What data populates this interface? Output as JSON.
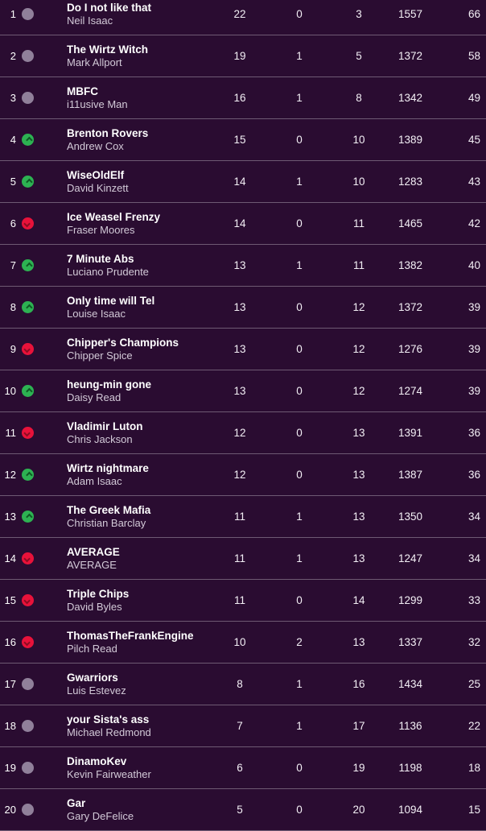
{
  "colors": {
    "background": "#2a0c31",
    "movement_up": "#2db252",
    "movement_down": "#e8123a",
    "movement_same": "#90809a",
    "separator": "rgba(255,255,255,0.32)"
  },
  "standings": [
    {
      "rank": "1",
      "movement": "same",
      "team": "Do I not like that",
      "manager": "Neil Isaac",
      "won": "22",
      "drawn": "0",
      "lost": "3",
      "points_for": "1557",
      "total": "66"
    },
    {
      "rank": "2",
      "movement": "same",
      "team": "The Wirtz Witch",
      "manager": "Mark Allport",
      "won": "19",
      "drawn": "1",
      "lost": "5",
      "points_for": "1372",
      "total": "58"
    },
    {
      "rank": "3",
      "movement": "same",
      "team": "MBFC",
      "manager": "i11usive Man",
      "won": "16",
      "drawn": "1",
      "lost": "8",
      "points_for": "1342",
      "total": "49"
    },
    {
      "rank": "4",
      "movement": "up",
      "team": "Brenton Rovers",
      "manager": "Andrew Cox",
      "won": "15",
      "drawn": "0",
      "lost": "10",
      "points_for": "1389",
      "total": "45"
    },
    {
      "rank": "5",
      "movement": "up",
      "team": "WiseOldElf",
      "manager": "David Kinzett",
      "won": "14",
      "drawn": "1",
      "lost": "10",
      "points_for": "1283",
      "total": "43"
    },
    {
      "rank": "6",
      "movement": "down",
      "team": "Ice Weasel Frenzy",
      "manager": "Fraser Moores",
      "won": "14",
      "drawn": "0",
      "lost": "11",
      "points_for": "1465",
      "total": "42"
    },
    {
      "rank": "7",
      "movement": "up",
      "team": "7 Minute Abs",
      "manager": "Luciano Prudente",
      "won": "13",
      "drawn": "1",
      "lost": "11",
      "points_for": "1382",
      "total": "40"
    },
    {
      "rank": "8",
      "movement": "up",
      "team": "Only time will Tel",
      "manager": "Louise Isaac",
      "won": "13",
      "drawn": "0",
      "lost": "12",
      "points_for": "1372",
      "total": "39"
    },
    {
      "rank": "9",
      "movement": "down",
      "team": "Chipper's Champions",
      "manager": "Chipper Spice",
      "won": "13",
      "drawn": "0",
      "lost": "12",
      "points_for": "1276",
      "total": "39"
    },
    {
      "rank": "10",
      "movement": "up",
      "team": "heung-min gone",
      "manager": "Daisy Read",
      "won": "13",
      "drawn": "0",
      "lost": "12",
      "points_for": "1274",
      "total": "39"
    },
    {
      "rank": "11",
      "movement": "down",
      "team": "Vladimir Luton",
      "manager": "Chris Jackson",
      "won": "12",
      "drawn": "0",
      "lost": "13",
      "points_for": "1391",
      "total": "36"
    },
    {
      "rank": "12",
      "movement": "up",
      "team": "Wirtz nightmare",
      "manager": "Adam Isaac",
      "won": "12",
      "drawn": "0",
      "lost": "13",
      "points_for": "1387",
      "total": "36"
    },
    {
      "rank": "13",
      "movement": "up",
      "team": "The Greek Mafia",
      "manager": "Christian Barclay",
      "won": "11",
      "drawn": "1",
      "lost": "13",
      "points_for": "1350",
      "total": "34"
    },
    {
      "rank": "14",
      "movement": "down",
      "team": "AVERAGE",
      "manager": "AVERAGE",
      "won": "11",
      "drawn": "1",
      "lost": "13",
      "points_for": "1247",
      "total": "34"
    },
    {
      "rank": "15",
      "movement": "down",
      "team": "Triple Chips",
      "manager": "David Byles",
      "won": "11",
      "drawn": "0",
      "lost": "14",
      "points_for": "1299",
      "total": "33"
    },
    {
      "rank": "16",
      "movement": "down",
      "team": "ThomasTheFrankEngine",
      "manager": "Pilch Read",
      "won": "10",
      "drawn": "2",
      "lost": "13",
      "points_for": "1337",
      "total": "32"
    },
    {
      "rank": "17",
      "movement": "same",
      "team": "Gwarriors",
      "manager": "Luis Estevez",
      "won": "8",
      "drawn": "1",
      "lost": "16",
      "points_for": "1434",
      "total": "25"
    },
    {
      "rank": "18",
      "movement": "same",
      "team": "your Sista's ass",
      "manager": "Michael Redmond",
      "won": "7",
      "drawn": "1",
      "lost": "17",
      "points_for": "1136",
      "total": "22"
    },
    {
      "rank": "19",
      "movement": "same",
      "team": "DinamoKev",
      "manager": "Kevin Fairweather",
      "won": "6",
      "drawn": "0",
      "lost": "19",
      "points_for": "1198",
      "total": "18"
    },
    {
      "rank": "20",
      "movement": "same",
      "team": "Gar",
      "manager": "Gary DeFelice",
      "won": "5",
      "drawn": "0",
      "lost": "20",
      "points_for": "1094",
      "total": "15"
    }
  ]
}
